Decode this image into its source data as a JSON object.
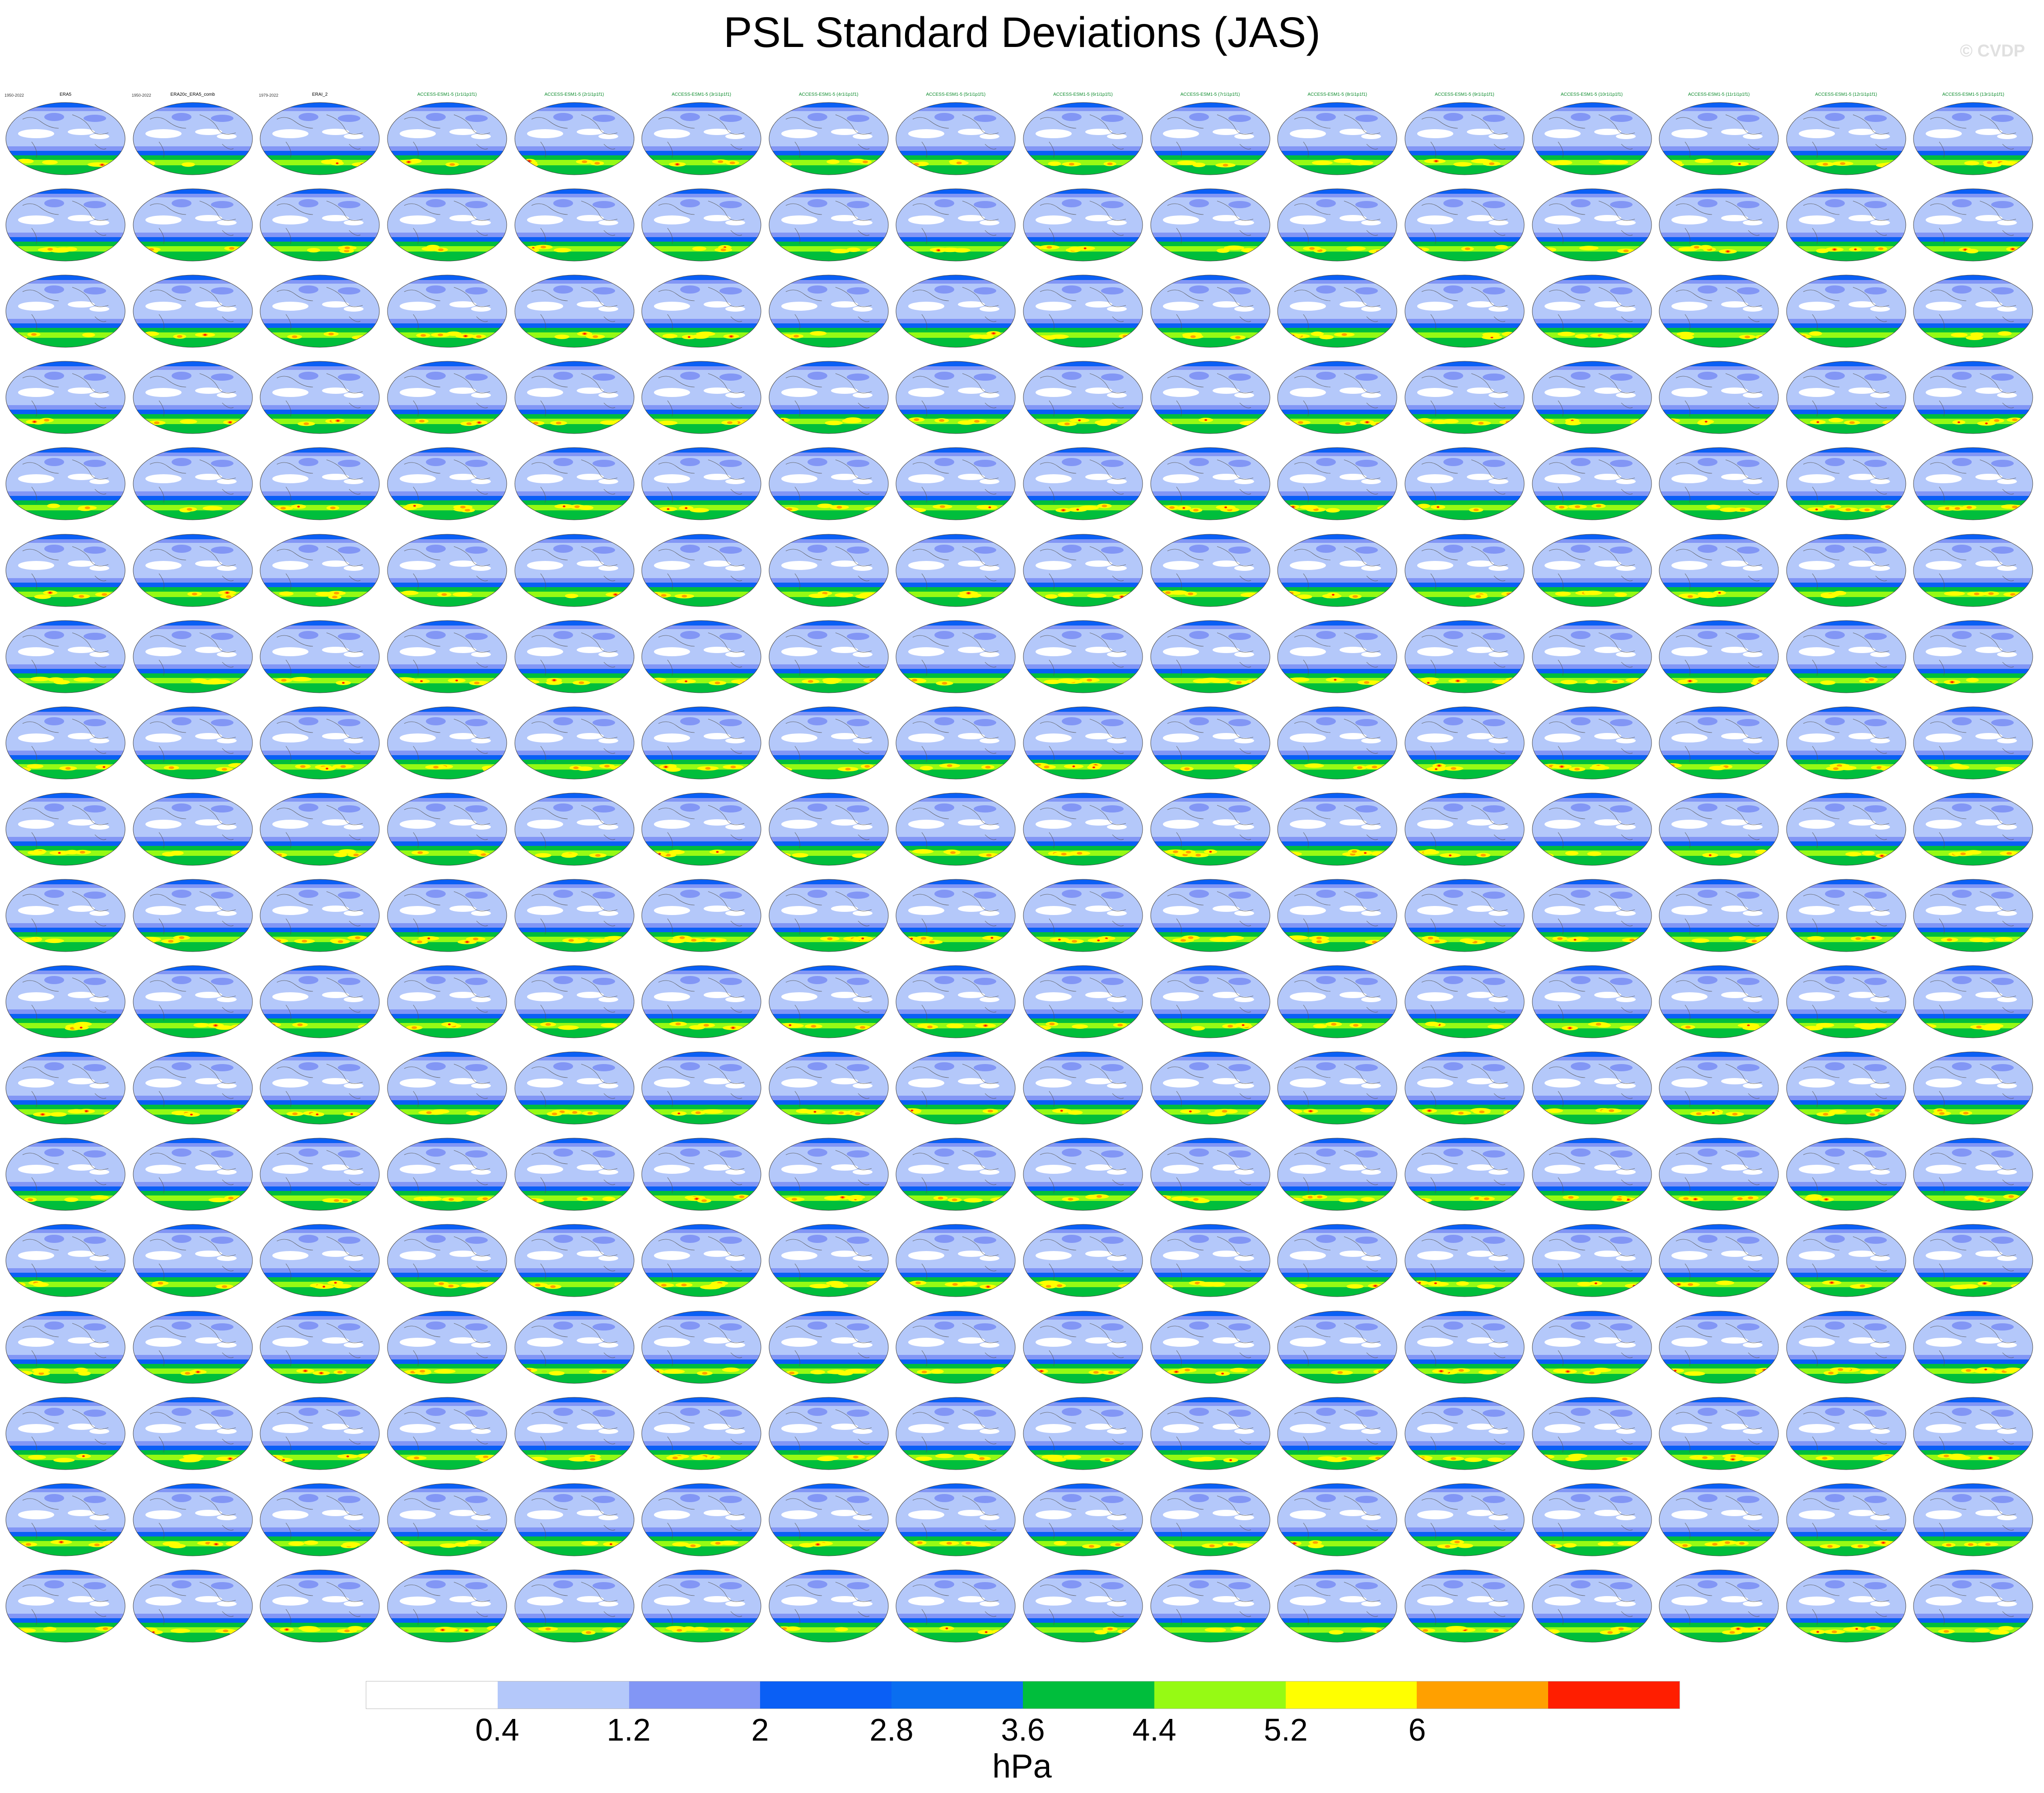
{
  "title": "PSL Standard Deviations (JAS)",
  "watermark": "© CVDP",
  "colorbar": {
    "colors": [
      "#ffffff",
      "#b4c8fa",
      "#8296f5",
      "#0a5ff5",
      "#0a6ef0",
      "#00be3c",
      "#96fa14",
      "#ffff00",
      "#ffa000",
      "#ff1e00"
    ],
    "tick_labels": [
      "0.4",
      "1.2",
      "2",
      "2.8",
      "3.6",
      "4.4",
      "5.2",
      "6"
    ],
    "units": "hPa"
  },
  "panel_grid": {
    "rows": 18,
    "cols": 16
  },
  "panel_years": [
    "1950-2022",
    "1950-2022",
    "1979-2022"
  ],
  "panel_names": [
    "ERA5",
    "ERA20c_ERA5_comb",
    "ERAI_2",
    "ACCESS-ESM1-5 (1r1i1p1f1)",
    "ACCESS-ESM1-5 (2r1i1p1f1)",
    "ACCESS-ESM1-5 (3r1i1p1f1)",
    "ACCESS-ESM1-5 (4r1i1p1f1)",
    "ACCESS-ESM1-5 (5r1i1p1f1)",
    "ACCESS-ESM1-5 (6r1i1p1f1)",
    "ACCESS-ESM1-5 (7r1i1p1f1)",
    "ACCESS-ESM1-5 (8r1i1p1f1)",
    "ACCESS-ESM1-5 (9r1i1p1f1)",
    "ACCESS-ESM1-5 (10r1i1p1f1)",
    "ACCESS-ESM1-5 (11r1i1p1f1)",
    "ACCESS-ESM1-5 (12r1i1p1f1)",
    "ACCESS-ESM1-5 (13r1i1p1f1)"
  ]
}
